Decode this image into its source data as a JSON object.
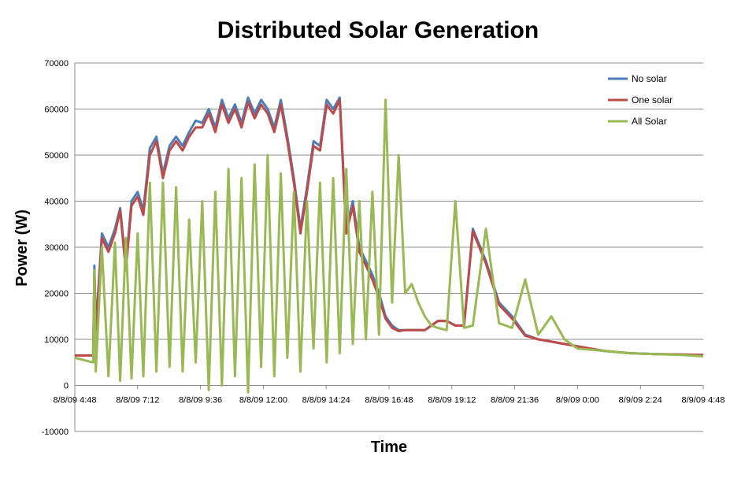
{
  "chart_data": {
    "type": "line",
    "title": "Distributed Solar Generation",
    "xlabel": "Time",
    "ylabel": "Power (W)",
    "ylim": [
      -10000,
      70000
    ],
    "yticks": [
      70000,
      60000,
      50000,
      40000,
      30000,
      20000,
      10000,
      0,
      -10000
    ],
    "xticks": [
      "8/8/09 4:48",
      "8/8/09 7:12",
      "8/8/09 9:36",
      "8/8/09 12:00",
      "8/8/09 14:24",
      "8/8/09 16:48",
      "8/8/09 19:12",
      "8/8/09 21:36",
      "8/9/09 0:00",
      "8/9/09 2:24",
      "8/9/09 4:48"
    ],
    "xlim": [
      "8/8/09 4:48",
      "8/9/09 4:48"
    ],
    "grid": true,
    "legend_position": "top-right",
    "series": [
      {
        "name": "No solar",
        "color": "#4a7ebb",
        "x": [
          "8/8/09 4:48",
          "8/8/09 5:30",
          "8/8/09 5:33",
          "8/8/09 5:36",
          "8/8/09 5:50",
          "8/8/09 6:05",
          "8/8/09 6:20",
          "8/8/09 6:32",
          "8/8/09 6:45",
          "8/8/09 6:58",
          "8/8/09 7:12",
          "8/8/09 7:25",
          "8/8/09 7:40",
          "8/8/09 7:55",
          "8/8/09 8:10",
          "8/8/09 8:25",
          "8/8/09 8:40",
          "8/8/09 8:55",
          "8/8/09 9:10",
          "8/8/09 9:25",
          "8/8/09 9:40",
          "8/8/09 9:55",
          "8/8/09 10:10",
          "8/8/09 10:25",
          "8/8/09 10:40",
          "8/8/09 10:55",
          "8/8/09 11:10",
          "8/8/09 11:25",
          "8/8/09 11:40",
          "8/8/09 11:55",
          "8/8/09 12:10",
          "8/8/09 12:25",
          "8/8/09 12:40",
          "8/8/09 12:55",
          "8/8/09 13:10",
          "8/8/09 13:25",
          "8/8/09 13:40",
          "8/8/09 13:55",
          "8/8/09 14:10",
          "8/8/09 14:25",
          "8/8/09 14:40",
          "8/8/09 14:55",
          "8/8/09 15:10",
          "8/8/09 15:25",
          "8/8/09 15:40",
          "8/8/09 15:55",
          "8/8/09 16:10",
          "8/8/09 16:25",
          "8/8/09 16:40",
          "8/8/09 16:55",
          "8/8/09 17:10",
          "8/8/09 17:25",
          "8/8/09 17:40",
          "8/8/09 17:55",
          "8/8/09 18:10",
          "8/8/09 18:25",
          "8/8/09 18:40",
          "8/8/09 19:00",
          "8/8/09 19:20",
          "8/8/09 19:40",
          "8/8/09 20:00",
          "8/8/09 20:30",
          "8/8/09 21:00",
          "8/8/09 21:30",
          "8/8/09 22:00",
          "8/8/09 22:30",
          "8/8/09 23:00",
          "8/8/09 23:30",
          "8/9/09 0:00",
          "8/9/09 1:00",
          "8/9/09 2:00",
          "8/9/09 3:00",
          "8/9/09 4:00",
          "8/9/09 4:48"
        ],
        "values": [
          6500,
          6500,
          26000,
          12000,
          33000,
          30000,
          34000,
          38500,
          26000,
          40000,
          42000,
          38000,
          51500,
          54000,
          46000,
          52000,
          54000,
          52000,
          55000,
          57500,
          57000,
          60000,
          56000,
          62000,
          58000,
          61000,
          57000,
          62500,
          59000,
          62000,
          60000,
          56000,
          62000,
          54000,
          45000,
          34000,
          43000,
          53000,
          52000,
          62000,
          60000,
          62500,
          34000,
          40000,
          30000,
          27000,
          24000,
          20000,
          15000,
          13000,
          12000,
          12000,
          12000,
          12000,
          12000,
          13000,
          14000,
          14000,
          13000,
          13000,
          34000,
          27000,
          18000,
          15000,
          11000,
          10000,
          9500,
          9000,
          8500,
          7500,
          7000,
          6800,
          6700,
          6600
        ]
      },
      {
        "name": "One solar",
        "color": "#be4b48",
        "x": [
          "8/8/09 4:48",
          "8/8/09 5:30",
          "8/8/09 5:33",
          "8/8/09 5:36",
          "8/8/09 5:50",
          "8/8/09 6:05",
          "8/8/09 6:20",
          "8/8/09 6:32",
          "8/8/09 6:45",
          "8/8/09 6:58",
          "8/8/09 7:12",
          "8/8/09 7:25",
          "8/8/09 7:40",
          "8/8/09 7:55",
          "8/8/09 8:10",
          "8/8/09 8:25",
          "8/8/09 8:40",
          "8/8/09 8:55",
          "8/8/09 9:10",
          "8/8/09 9:25",
          "8/8/09 9:40",
          "8/8/09 9:55",
          "8/8/09 10:10",
          "8/8/09 10:25",
          "8/8/09 10:40",
          "8/8/09 10:55",
          "8/8/09 11:10",
          "8/8/09 11:25",
          "8/8/09 11:40",
          "8/8/09 11:55",
          "8/8/09 12:10",
          "8/8/09 12:25",
          "8/8/09 12:40",
          "8/8/09 12:55",
          "8/8/09 13:10",
          "8/8/09 13:25",
          "8/8/09 13:40",
          "8/8/09 13:55",
          "8/8/09 14:10",
          "8/8/09 14:25",
          "8/8/09 14:40",
          "8/8/09 14:55",
          "8/8/09 15:10",
          "8/8/09 15:25",
          "8/8/09 15:40",
          "8/8/09 15:55",
          "8/8/09 16:10",
          "8/8/09 16:25",
          "8/8/09 16:40",
          "8/8/09 16:55",
          "8/8/09 17:10",
          "8/8/09 17:25",
          "8/8/09 17:40",
          "8/8/09 17:55",
          "8/8/09 18:10",
          "8/8/09 18:25",
          "8/8/09 18:40",
          "8/8/09 19:00",
          "8/8/09 19:20",
          "8/8/09 19:40",
          "8/8/09 20:00",
          "8/8/09 20:30",
          "8/8/09 21:00",
          "8/8/09 21:30",
          "8/8/09 22:00",
          "8/8/09 22:30",
          "8/8/09 23:00",
          "8/8/09 23:30",
          "8/9/09 0:00",
          "8/9/09 1:00",
          "8/9/09 2:00",
          "8/9/09 3:00",
          "8/9/09 4:00",
          "8/9/09 4:48"
        ],
        "values": [
          6500,
          6500,
          25000,
          11000,
          32000,
          29000,
          33000,
          38000,
          25000,
          39000,
          41000,
          37000,
          50000,
          53000,
          45000,
          51000,
          53000,
          51000,
          54000,
          56000,
          56000,
          59000,
          55000,
          61000,
          57000,
          60000,
          56000,
          61500,
          58000,
          61000,
          59000,
          55000,
          61000,
          53000,
          44000,
          33000,
          42000,
          52000,
          51000,
          61000,
          59000,
          62000,
          33000,
          39000,
          29000,
          26000,
          23000,
          19000,
          14500,
          12500,
          11800,
          12000,
          12000,
          12000,
          12000,
          13000,
          14000,
          14000,
          13000,
          13000,
          33500,
          26500,
          17500,
          14500,
          10800,
          10000,
          9500,
          9000,
          8500,
          7500,
          7000,
          6800,
          6700,
          6600
        ]
      },
      {
        "name": "All Solar",
        "color": "#98b954",
        "x": [
          "8/8/09 4:48",
          "8/8/09 5:30",
          "8/8/09 5:33",
          "8/8/09 5:36",
          "8/8/09 5:50",
          "8/8/09 6:05",
          "8/8/09 6:20",
          "8/8/09 6:32",
          "8/8/09 6:45",
          "8/8/09 6:58",
          "8/8/09 7:12",
          "8/8/09 7:25",
          "8/8/09 7:40",
          "8/8/09 7:55",
          "8/8/09 8:10",
          "8/8/09 8:25",
          "8/8/09 8:40",
          "8/8/09 8:55",
          "8/8/09 9:10",
          "8/8/09 9:25",
          "8/8/09 9:40",
          "8/8/09 9:55",
          "8/8/09 10:10",
          "8/8/09 10:25",
          "8/8/09 10:40",
          "8/8/09 10:55",
          "8/8/09 11:10",
          "8/8/09 11:25",
          "8/8/09 11:40",
          "8/8/09 11:55",
          "8/8/09 12:10",
          "8/8/09 12:25",
          "8/8/09 12:40",
          "8/8/09 12:55",
          "8/8/09 13:10",
          "8/8/09 13:25",
          "8/8/09 13:40",
          "8/8/09 13:55",
          "8/8/09 14:10",
          "8/8/09 14:25",
          "8/8/09 14:40",
          "8/8/09 14:55",
          "8/8/09 15:10",
          "8/8/09 15:25",
          "8/8/09 15:40",
          "8/8/09 15:55",
          "8/8/09 16:10",
          "8/8/09 16:25",
          "8/8/09 16:40",
          "8/8/09 16:55",
          "8/8/09 17:10",
          "8/8/09 17:25",
          "8/8/09 17:40",
          "8/8/09 17:55",
          "8/8/09 18:10",
          "8/8/09 18:25",
          "8/8/09 18:40",
          "8/8/09 19:00",
          "8/8/09 19:20",
          "8/8/09 19:40",
          "8/8/09 20:00",
          "8/8/09 20:30",
          "8/8/09 21:00",
          "8/8/09 21:30",
          "8/8/09 22:00",
          "8/8/09 22:30",
          "8/8/09 23:00",
          "8/8/09 23:30",
          "8/9/09 0:00",
          "8/9/09 1:00",
          "8/9/09 2:00",
          "8/9/09 3:00",
          "8/9/09 4:00",
          "8/9/09 4:48"
        ],
        "values": [
          6000,
          5000,
          25000,
          3000,
          30000,
          2000,
          31000,
          1000,
          32000,
          1500,
          33000,
          2000,
          44000,
          3000,
          44000,
          4000,
          43000,
          3000,
          36000,
          5000,
          40000,
          -1000,
          42000,
          0,
          47000,
          2000,
          45000,
          -1500,
          48000,
          4000,
          50000,
          2000,
          46000,
          6000,
          42000,
          3000,
          40000,
          8000,
          44000,
          5000,
          45000,
          7000,
          47000,
          9000,
          40000,
          10000,
          42000,
          11000,
          62000,
          18000,
          50000,
          20000,
          22000,
          18000,
          15000,
          13000,
          12500,
          12000,
          40000,
          12500,
          13000,
          34000,
          13500,
          12500,
          23000,
          11000,
          15000,
          10000,
          8000,
          7500,
          7000,
          6800,
          6600,
          6300
        ]
      }
    ]
  }
}
